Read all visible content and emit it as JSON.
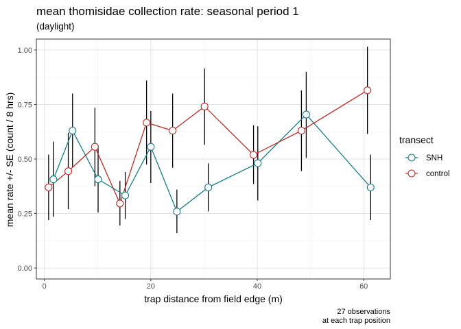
{
  "chart_data": {
    "type": "line",
    "title": "mean thomisidae collection rate: seasonal period 1",
    "subtitle": "(daylight)",
    "xlabel": "trap distance from field edge (m)",
    "ylabel": "mean rate +/- SE (count / 8 hrs)",
    "xlim": [
      -1.5,
      65
    ],
    "ylim": [
      -0.05,
      1.05
    ],
    "x_ticks": [
      0,
      20,
      40,
      60
    ],
    "x_tick_labels": [
      "0",
      "20",
      "40",
      "60"
    ],
    "y_ticks": [
      0,
      0.25,
      0.5,
      0.75,
      1.0
    ],
    "y_tick_labels": [
      "0.00",
      "0.25",
      "0.50",
      "0.75",
      "1.00"
    ],
    "grid": true,
    "legend": {
      "title": "transect",
      "position": "right",
      "entries": [
        "SNH",
        "control"
      ]
    },
    "caption_lines": [
      "27 observations",
      "at each trap position"
    ],
    "series": [
      {
        "name": "SNH",
        "color": "#1b7a85",
        "points": [
          {
            "x": 1.7,
            "y": 0.407,
            "lo": 0.235,
            "hi": 0.58
          },
          {
            "x": 5.3,
            "y": 0.63,
            "lo": 0.46,
            "hi": 0.8
          },
          {
            "x": 10.1,
            "y": 0.407,
            "lo": 0.255,
            "hi": 0.56
          },
          {
            "x": 15.2,
            "y": 0.333,
            "lo": 0.225,
            "hi": 0.44
          },
          {
            "x": 20.0,
            "y": 0.556,
            "lo": 0.39,
            "hi": 0.72
          },
          {
            "x": 24.9,
            "y": 0.259,
            "lo": 0.16,
            "hi": 0.36
          },
          {
            "x": 30.8,
            "y": 0.37,
            "lo": 0.26,
            "hi": 0.48
          },
          {
            "x": 40.1,
            "y": 0.481,
            "lo": 0.31,
            "hi": 0.65
          },
          {
            "x": 49.2,
            "y": 0.704,
            "lo": 0.505,
            "hi": 0.9
          },
          {
            "x": 61.3,
            "y": 0.37,
            "lo": 0.22,
            "hi": 0.52
          }
        ]
      },
      {
        "name": "control",
        "color": "#b2302a",
        "points": [
          {
            "x": 0.8,
            "y": 0.37,
            "lo": 0.22,
            "hi": 0.52
          },
          {
            "x": 4.5,
            "y": 0.444,
            "lo": 0.27,
            "hi": 0.62
          },
          {
            "x": 9.5,
            "y": 0.556,
            "lo": 0.375,
            "hi": 0.735
          },
          {
            "x": 14.2,
            "y": 0.296,
            "lo": 0.195,
            "hi": 0.4
          },
          {
            "x": 19.2,
            "y": 0.667,
            "lo": 0.475,
            "hi": 0.86
          },
          {
            "x": 24.1,
            "y": 0.63,
            "lo": 0.46,
            "hi": 0.8
          },
          {
            "x": 30.1,
            "y": 0.741,
            "lo": 0.565,
            "hi": 0.915
          },
          {
            "x": 39.3,
            "y": 0.519,
            "lo": 0.385,
            "hi": 0.655
          },
          {
            "x": 48.3,
            "y": 0.63,
            "lo": 0.445,
            "hi": 0.815
          },
          {
            "x": 60.7,
            "y": 0.815,
            "lo": 0.615,
            "hi": 1.015
          }
        ]
      }
    ]
  }
}
